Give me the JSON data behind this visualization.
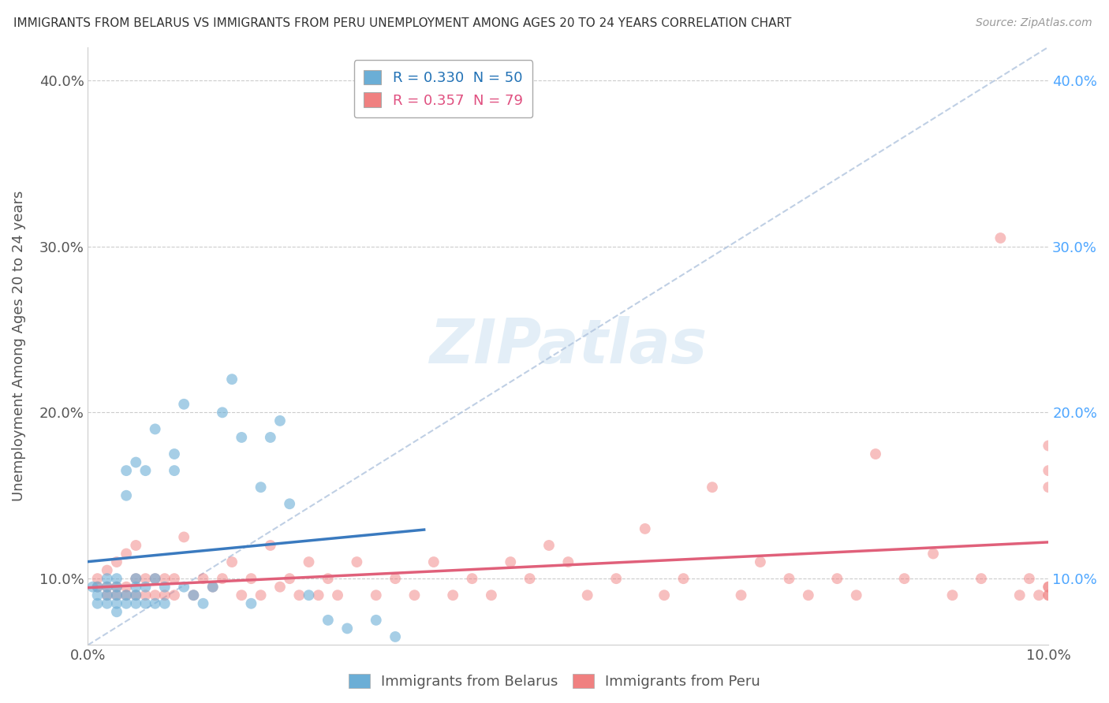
{
  "title": "IMMIGRANTS FROM BELARUS VS IMMIGRANTS FROM PERU UNEMPLOYMENT AMONG AGES 20 TO 24 YEARS CORRELATION CHART",
  "source": "Source: ZipAtlas.com",
  "ylabel": "Unemployment Among Ages 20 to 24 years",
  "xlim": [
    0.0,
    0.1
  ],
  "ylim": [
    0.06,
    0.42
  ],
  "xticks": [
    0.0,
    0.02,
    0.04,
    0.06,
    0.08,
    0.1
  ],
  "yticks": [
    0.1,
    0.2,
    0.3,
    0.4
  ],
  "xtick_labels": [
    "0.0%",
    "",
    "",
    "",
    "",
    "10.0%"
  ],
  "ytick_labels": [
    "10.0%",
    "20.0%",
    "30.0%",
    "40.0%"
  ],
  "legend_entries": [
    {
      "label": "R = 0.330  N = 50",
      "color": "#6baed6"
    },
    {
      "label": "R = 0.357  N = 79",
      "color": "#f08080"
    }
  ],
  "legend_bottom": [
    "Immigrants from Belarus",
    "Immigrants from Peru"
  ],
  "watermark": "ZIPatlas",
  "belarus_color": "#6baed6",
  "peru_color": "#f08080",
  "belarus_line_color": "#3a7abf",
  "peru_line_color": "#e0607a",
  "diag_color": "#b0c4de",
  "belarus_x": [
    0.0005,
    0.001,
    0.001,
    0.001,
    0.002,
    0.002,
    0.002,
    0.002,
    0.003,
    0.003,
    0.003,
    0.003,
    0.003,
    0.004,
    0.004,
    0.004,
    0.004,
    0.005,
    0.005,
    0.005,
    0.005,
    0.005,
    0.006,
    0.006,
    0.006,
    0.007,
    0.007,
    0.007,
    0.008,
    0.008,
    0.009,
    0.009,
    0.01,
    0.01,
    0.011,
    0.012,
    0.013,
    0.014,
    0.015,
    0.016,
    0.017,
    0.018,
    0.019,
    0.02,
    0.021,
    0.023,
    0.025,
    0.027,
    0.03,
    0.032
  ],
  "belarus_y": [
    0.095,
    0.085,
    0.09,
    0.095,
    0.085,
    0.09,
    0.095,
    0.1,
    0.08,
    0.085,
    0.09,
    0.095,
    0.1,
    0.085,
    0.09,
    0.15,
    0.165,
    0.085,
    0.09,
    0.095,
    0.1,
    0.17,
    0.085,
    0.095,
    0.165,
    0.085,
    0.1,
    0.19,
    0.085,
    0.095,
    0.165,
    0.175,
    0.095,
    0.205,
    0.09,
    0.085,
    0.095,
    0.2,
    0.22,
    0.185,
    0.085,
    0.155,
    0.185,
    0.195,
    0.145,
    0.09,
    0.075,
    0.07,
    0.075,
    0.065
  ],
  "peru_x": [
    0.001,
    0.001,
    0.002,
    0.002,
    0.002,
    0.003,
    0.003,
    0.003,
    0.004,
    0.004,
    0.004,
    0.005,
    0.005,
    0.005,
    0.006,
    0.006,
    0.007,
    0.007,
    0.008,
    0.008,
    0.009,
    0.009,
    0.01,
    0.011,
    0.012,
    0.013,
    0.014,
    0.015,
    0.016,
    0.017,
    0.018,
    0.019,
    0.02,
    0.021,
    0.022,
    0.023,
    0.024,
    0.025,
    0.026,
    0.028,
    0.03,
    0.032,
    0.034,
    0.036,
    0.038,
    0.04,
    0.042,
    0.044,
    0.046,
    0.048,
    0.05,
    0.052,
    0.055,
    0.058,
    0.06,
    0.062,
    0.065,
    0.068,
    0.07,
    0.073,
    0.075,
    0.078,
    0.08,
    0.082,
    0.085,
    0.088,
    0.09,
    0.093,
    0.095,
    0.097,
    0.098,
    0.099,
    0.1,
    0.1,
    0.1,
    0.1,
    0.1,
    0.1,
    0.1
  ],
  "peru_y": [
    0.095,
    0.1,
    0.09,
    0.095,
    0.105,
    0.09,
    0.095,
    0.11,
    0.09,
    0.095,
    0.115,
    0.09,
    0.1,
    0.12,
    0.09,
    0.1,
    0.09,
    0.1,
    0.09,
    0.1,
    0.09,
    0.1,
    0.125,
    0.09,
    0.1,
    0.095,
    0.1,
    0.11,
    0.09,
    0.1,
    0.09,
    0.12,
    0.095,
    0.1,
    0.09,
    0.11,
    0.09,
    0.1,
    0.09,
    0.11,
    0.09,
    0.1,
    0.09,
    0.11,
    0.09,
    0.1,
    0.09,
    0.11,
    0.1,
    0.12,
    0.11,
    0.09,
    0.1,
    0.13,
    0.09,
    0.1,
    0.155,
    0.09,
    0.11,
    0.1,
    0.09,
    0.1,
    0.09,
    0.175,
    0.1,
    0.115,
    0.09,
    0.1,
    0.305,
    0.09,
    0.1,
    0.09,
    0.095,
    0.155,
    0.165,
    0.09,
    0.095,
    0.18,
    0.09
  ]
}
